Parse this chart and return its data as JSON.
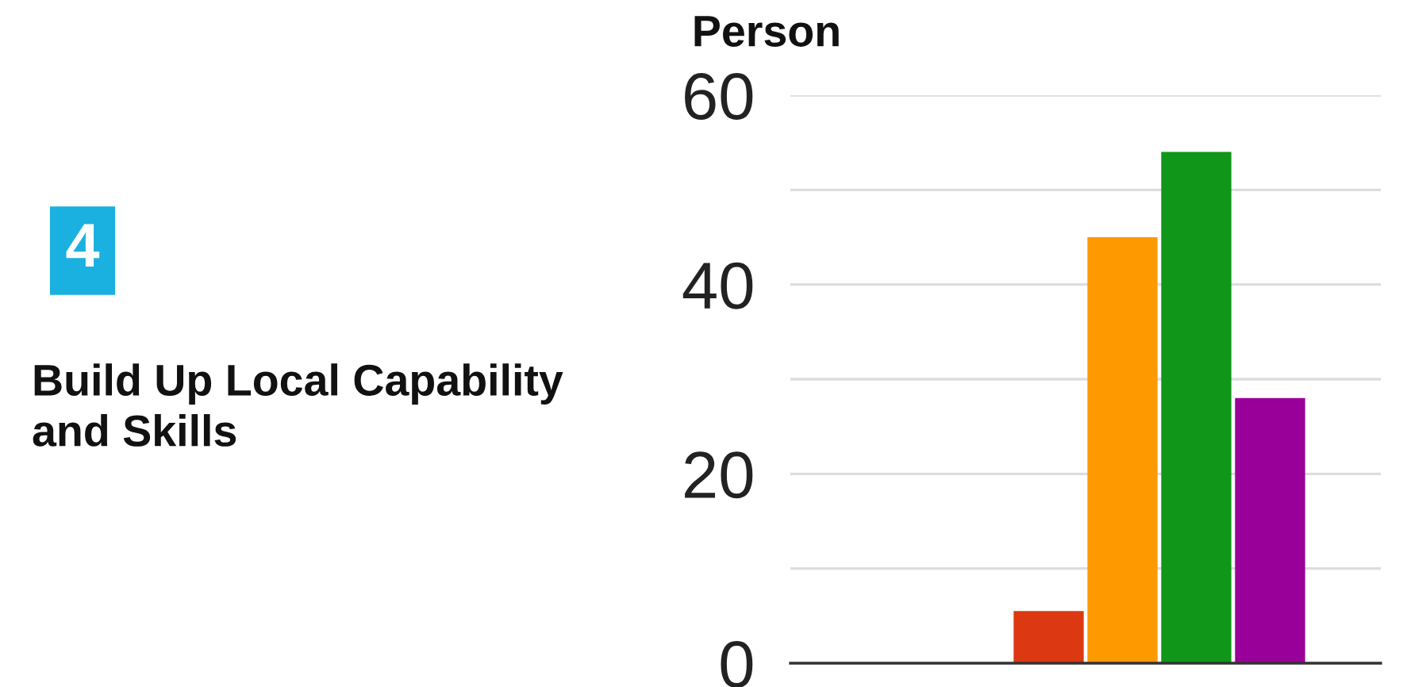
{
  "chart_data": {
    "type": "bar",
    "ylabel": "Person",
    "annotations": [
      "4",
      "Build Up Local Capability and Skills"
    ],
    "categories": [
      null,
      null,
      null,
      null,
      null,
      null,
      null,
      null
    ],
    "values": [
      null,
      null,
      null,
      5.5,
      45,
      54,
      28,
      null
    ],
    "colors": [
      "#dc3912",
      "#dc3912",
      "#dc3912",
      "#dc3912",
      "#ff9900",
      "#109618",
      "#990099",
      "#990099"
    ],
    "ylim": [
      0,
      60
    ],
    "yticks": [
      0,
      {
        "value": 10,
        "label": null
      },
      20,
      {
        "value": 30,
        "label": null
      },
      40,
      {
        "value": 50,
        "label": null
      },
      60
    ],
    "grid": "y"
  }
}
